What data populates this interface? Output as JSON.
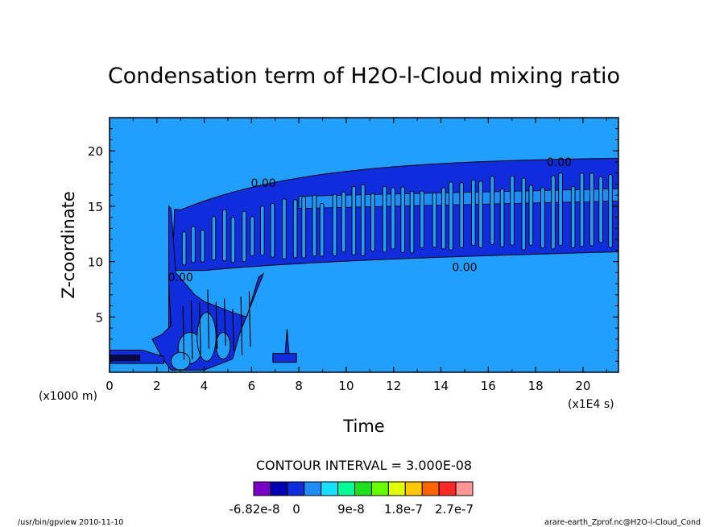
{
  "chart_data": {
    "type": "heatmap",
    "title": "Condensation term of H2O-l-Cloud mixing ratio",
    "xlabel": "Time",
    "ylabel": "Z-coordinate",
    "x_unit": "(x1E4 s)",
    "y_unit": "(x1000 m)",
    "xlim": [
      0,
      21.5
    ],
    "ylim": [
      0,
      23
    ],
    "x_ticks": [
      0,
      2,
      4,
      6,
      8,
      10,
      12,
      14,
      16,
      18,
      20
    ],
    "y_ticks": [
      5,
      10,
      15,
      20
    ],
    "contour_interval_text": "CONTOUR INTERVAL = 3.000E-08",
    "contour_labels": [
      "0.00",
      "0.00",
      "0.00",
      "0.00"
    ],
    "colorbar": {
      "colors": [
        "#7a00c8",
        "#0000b4",
        "#0f2ddc",
        "#1f8cff",
        "#14e1ff",
        "#00ff96",
        "#1ee11e",
        "#64ff00",
        "#e1ff00",
        "#ffc800",
        "#ff6400",
        "#ff2828",
        "#ff9696"
      ],
      "tick_labels": [
        "-6.82e-8",
        "0",
        "9e-8",
        "1.8e-7",
        "2.7e-7"
      ]
    },
    "background_color": "#1fa0ff",
    "cloud_color": "#0f2ddc",
    "footer_left": "/usr/bin/gpview   2010-11-10",
    "footer_right": "arare-earth_Zprof.nc@H2O-l-Cloud_Cond"
  }
}
